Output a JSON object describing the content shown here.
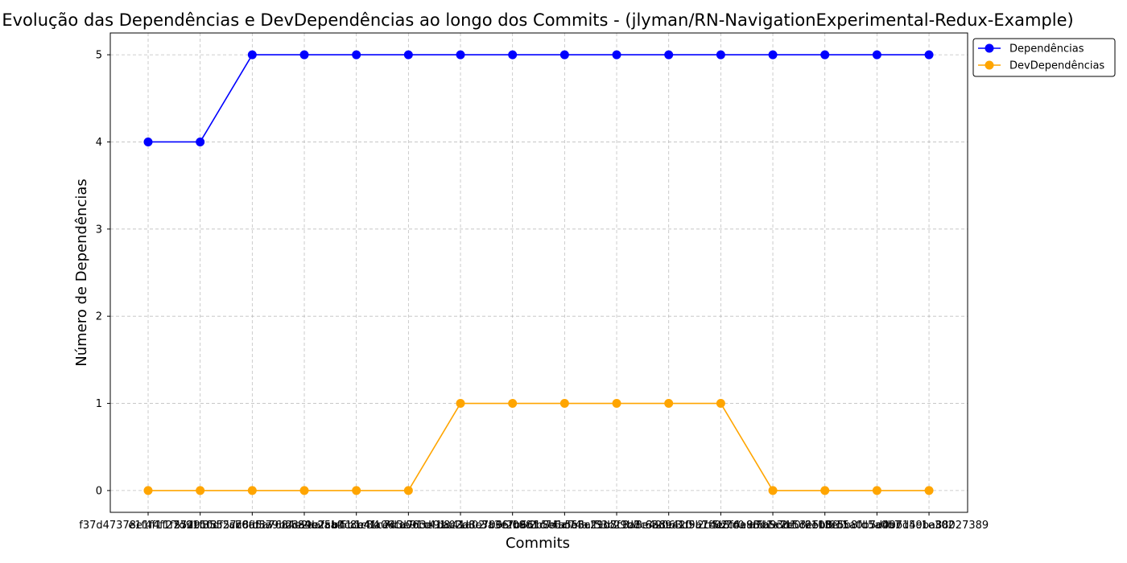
{
  "chart_data": {
    "type": "line",
    "title": "Evolução das Dependências e DevDependências ao longo dos Commits - (jlyman/RN-NavigationExperimental-Redux-Example)",
    "xlabel": "Commits",
    "ylabel": "Número de Dependências",
    "ylim": [
      -0.25,
      5.25
    ],
    "yticks": [
      0,
      1,
      2,
      3,
      4,
      5
    ],
    "grid": true,
    "legend_position": "outside-top-right",
    "categories": [
      "f37d47378e1f4f1f27d91f3",
      "e1f4f1f27d91f3552cb0df57",
      "552cb0df57c8a5a76fd3a9b2c",
      "a76fd3a9b2c84e2aaf5b1c84",
      "84e2aaf5b1c8b41ce4fa06cd",
      "b41ce4fa06cd7d3e91c41a02",
      "7d3e91c41a02d8c3a3e7b66f",
      "d8c3a3e7b66f09f2b8d1c74a",
      "09f2b8d1c74a5e6af53c29d8",
      "5e6af53c29d8f1b7c3a8e420",
      "f1b7c3a8e42063d9a1f5b7c0",
      "63d9a1f5b7c02c4e8f6a93d1",
      "2c4e8f6a93d1a7b5c2e0f611",
      "a7b5c2e0f6113e5b8fd5a0b7",
      "3e5b8fd5a0b7d49b15c1e302",
      "5a0b7d49ba88027389"
    ],
    "series": [
      {
        "name": "Dependências",
        "color": "#0000ff",
        "values": [
          4,
          4,
          5,
          5,
          5,
          5,
          5,
          5,
          5,
          5,
          5,
          5,
          5,
          5,
          5,
          5
        ]
      },
      {
        "name": "DevDependências",
        "color": "#ffa500",
        "values": [
          0,
          0,
          0,
          0,
          0,
          0,
          1,
          1,
          1,
          1,
          1,
          1,
          0,
          0,
          0,
          0
        ]
      }
    ]
  }
}
